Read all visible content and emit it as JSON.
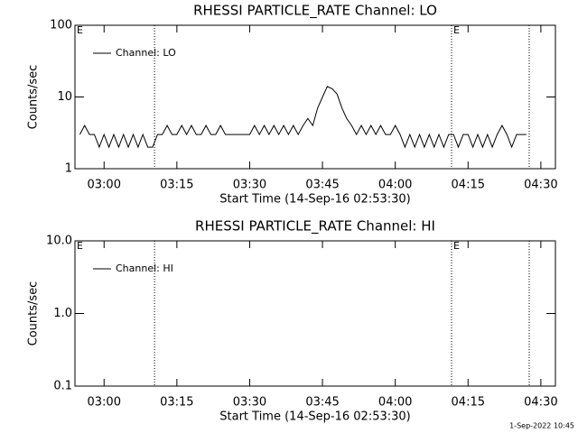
{
  "chart_data": [
    {
      "type": "line",
      "title": "RHESSI PARTICLE_RATE Channel: LO",
      "xlabel": "Start Time (14-Sep-16 02:53:30)",
      "ylabel": "Counts/sec",
      "x": [
        "02:55",
        "02:56",
        "02:57",
        "02:58",
        "02:59",
        "03:00",
        "03:01",
        "03:02",
        "03:03",
        "03:04",
        "03:05",
        "03:06",
        "03:07",
        "03:08",
        "03:09",
        "03:10",
        "03:11",
        "03:12",
        "03:13",
        "03:14",
        "03:15",
        "03:16",
        "03:17",
        "03:18",
        "03:19",
        "03:20",
        "03:21",
        "03:22",
        "03:23",
        "03:24",
        "03:25",
        "03:26",
        "03:27",
        "03:28",
        "03:29",
        "03:30",
        "03:31",
        "03:32",
        "03:33",
        "03:34",
        "03:35",
        "03:36",
        "03:37",
        "03:38",
        "03:39",
        "03:40",
        "03:41",
        "03:42",
        "03:43",
        "03:44",
        "03:45",
        "03:46",
        "03:47",
        "03:48",
        "03:49",
        "03:50",
        "03:51",
        "03:52",
        "03:53",
        "03:54",
        "03:55",
        "03:56",
        "03:57",
        "03:58",
        "03:59",
        "04:00",
        "04:01",
        "04:02",
        "04:03",
        "04:04",
        "04:05",
        "04:06",
        "04:07",
        "04:08",
        "04:09",
        "04:10",
        "04:11",
        "04:12",
        "04:13",
        "04:14",
        "04:15",
        "04:16",
        "04:17",
        "04:18",
        "04:19",
        "04:20",
        "04:21",
        "04:22",
        "04:23",
        "04:24",
        "04:25",
        "04:26",
        "04:27"
      ],
      "series": [
        {
          "name": "Channel: LO",
          "color": "#000000",
          "values": [
            3,
            4,
            3,
            3,
            2,
            3,
            2,
            3,
            2,
            3,
            2,
            3,
            2,
            3,
            2,
            2,
            3,
            3,
            4,
            3,
            3,
            4,
            3,
            4,
            3,
            3,
            4,
            3,
            3,
            4,
            3,
            3,
            3,
            3,
            3,
            3,
            4,
            3,
            4,
            3,
            4,
            3,
            4,
            3,
            4,
            3,
            4,
            5,
            4,
            7,
            10,
            14,
            13,
            11,
            7,
            5,
            4,
            3,
            4,
            3,
            4,
            3,
            4,
            3,
            3,
            4,
            3,
            2,
            3,
            2,
            3,
            2,
            3,
            2,
            3,
            2,
            3,
            3,
            2,
            3,
            3,
            2,
            3,
            2,
            3,
            2,
            3,
            4,
            3,
            2,
            3,
            3,
            3
          ]
        }
      ],
      "xlim": [
        "02:54",
        "04:33"
      ],
      "xticks": [
        "03:00",
        "03:15",
        "03:30",
        "03:45",
        "04:00",
        "04:15",
        "04:30"
      ],
      "ylim": [
        1,
        100
      ],
      "yticks": [
        1,
        10,
        100
      ],
      "log_y": true,
      "legend": "upper left",
      "vlines": [
        "03:10:24",
        "04:11:36",
        "04:27:36"
      ],
      "annotations": [
        {
          "text": "E",
          "x": "02:54"
        },
        {
          "text": "E",
          "x": "04:11:36"
        }
      ]
    },
    {
      "type": "line",
      "title": "RHESSI PARTICLE_RATE Channel: HI",
      "xlabel": "Start Time (14-Sep-16 02:53:30)",
      "ylabel": "Counts/sec",
      "x": [],
      "series": [
        {
          "name": "Channel: HI",
          "color": "#000000",
          "values": []
        }
      ],
      "xlim": [
        "02:54",
        "04:33"
      ],
      "xticks": [
        "03:00",
        "03:15",
        "03:30",
        "03:45",
        "04:00",
        "04:15",
        "04:30"
      ],
      "ylim": [
        0.1,
        10
      ],
      "yticks": [
        0.1,
        {
          "value": 1,
          "label": "1.0"
        },
        {
          "value": 10,
          "label": "10.0"
        }
      ],
      "log_y": true,
      "legend": "upper left",
      "vlines": [
        "03:10:24",
        "04:11:36",
        "04:27:36"
      ],
      "annotations": [
        {
          "text": "E",
          "x": "02:54"
        },
        {
          "text": "E",
          "x": "04:11:36"
        }
      ]
    }
  ],
  "footer": "1-Sep-2022 10:45"
}
